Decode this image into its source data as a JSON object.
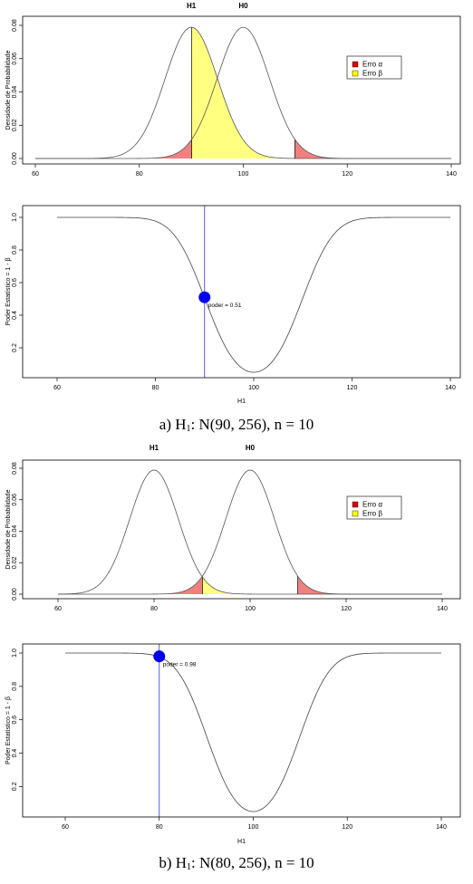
{
  "captions": [
    {
      "letter": "a)",
      "hyp": "H",
      "sub": "1",
      "dist": ": N(90, 256), n = 10"
    },
    {
      "letter": "b)",
      "hyp": "H",
      "sub": "1",
      "dist": ": N(80, 256), n = 10"
    }
  ],
  "chart_data": [
    {
      "id": "a-density",
      "type": "line",
      "ylabel": "Densidade de Probabilidade",
      "xlim": [
        60,
        140
      ],
      "ylim": [
        0,
        0.08
      ],
      "xticks": [
        60,
        80,
        100,
        120,
        140
      ],
      "yticks": [
        0.0,
        0.02,
        0.04,
        0.06,
        0.08
      ],
      "yticklabels": [
        "0.00",
        "0.02",
        "0.04",
        "0.06",
        "0.08"
      ],
      "top_labels": [
        {
          "x": 90,
          "text": "H1"
        },
        {
          "x": 100,
          "text": "H0"
        }
      ],
      "legend": {
        "placement": "right",
        "items": [
          {
            "label": "Erro α",
            "color": "#e00000"
          },
          {
            "label": "Erro β",
            "color": "#ffff00"
          }
        ]
      },
      "series": [
        {
          "mean": 90,
          "sd": 5.06
        },
        {
          "mean": 100,
          "sd": 5.06
        }
      ],
      "critical_values": [
        90.08,
        109.92
      ],
      "alpha_color": "#f08080",
      "beta_color": "#ffff80"
    },
    {
      "id": "a-power",
      "type": "line",
      "xlabel": "H1",
      "ylabel": "Poder Estatístico = 1 - β",
      "xlim": [
        60,
        140
      ],
      "ylim": [
        0.05,
        1.0
      ],
      "xticks": [
        60,
        80,
        100,
        120,
        140
      ],
      "yticks": [
        0.2,
        0.4,
        0.6,
        0.8,
        1.0
      ],
      "yticklabels": [
        "0.2",
        "0.4",
        "0.6",
        "0.8",
        "1.0"
      ],
      "h0_mean": 100,
      "critical_values": [
        90.08,
        109.92
      ],
      "sd": 5.06,
      "line_color": "#4444ff",
      "point": {
        "x": 90,
        "y": 0.51,
        "color": "#0000ee"
      },
      "annotation": "poder =  0.51"
    },
    {
      "id": "b-density",
      "type": "line",
      "ylabel": "Densidade de Probabilidade",
      "xlim": [
        60,
        140
      ],
      "ylim": [
        0,
        0.08
      ],
      "xticks": [
        60,
        80,
        100,
        120,
        140
      ],
      "yticks": [
        0.0,
        0.02,
        0.04,
        0.06,
        0.08
      ],
      "yticklabels": [
        "0.00",
        "0.02",
        "0.04",
        "0.06",
        "0.08"
      ],
      "top_labels": [
        {
          "x": 80,
          "text": "H1"
        },
        {
          "x": 100,
          "text": "H0"
        }
      ],
      "legend": {
        "placement": "right",
        "items": [
          {
            "label": "Erro α",
            "color": "#e00000"
          },
          {
            "label": "Erro β",
            "color": "#ffff00"
          }
        ]
      },
      "series": [
        {
          "mean": 80,
          "sd": 5.06
        },
        {
          "mean": 100,
          "sd": 5.06
        }
      ],
      "critical_values": [
        90.08,
        109.92
      ],
      "alpha_color": "#f08080",
      "beta_color": "#ffff80"
    },
    {
      "id": "b-power",
      "type": "line",
      "xlabel": "H1",
      "ylabel": "Poder Estatístico = 1 - β",
      "xlim": [
        60,
        140
      ],
      "ylim": [
        0.05,
        1.0
      ],
      "xticks": [
        60,
        80,
        100,
        120,
        140
      ],
      "yticks": [
        0.2,
        0.4,
        0.6,
        0.8,
        1.0
      ],
      "yticklabels": [
        "0.2",
        "0.4",
        "0.6",
        "0.8",
        "1.0"
      ],
      "h0_mean": 100,
      "critical_values": [
        90.08,
        109.92
      ],
      "sd": 5.06,
      "line_color": "#4444ff",
      "point": {
        "x": 80,
        "y": 0.98,
        "color": "#0000ee"
      },
      "annotation": "poder =  0.98"
    }
  ]
}
